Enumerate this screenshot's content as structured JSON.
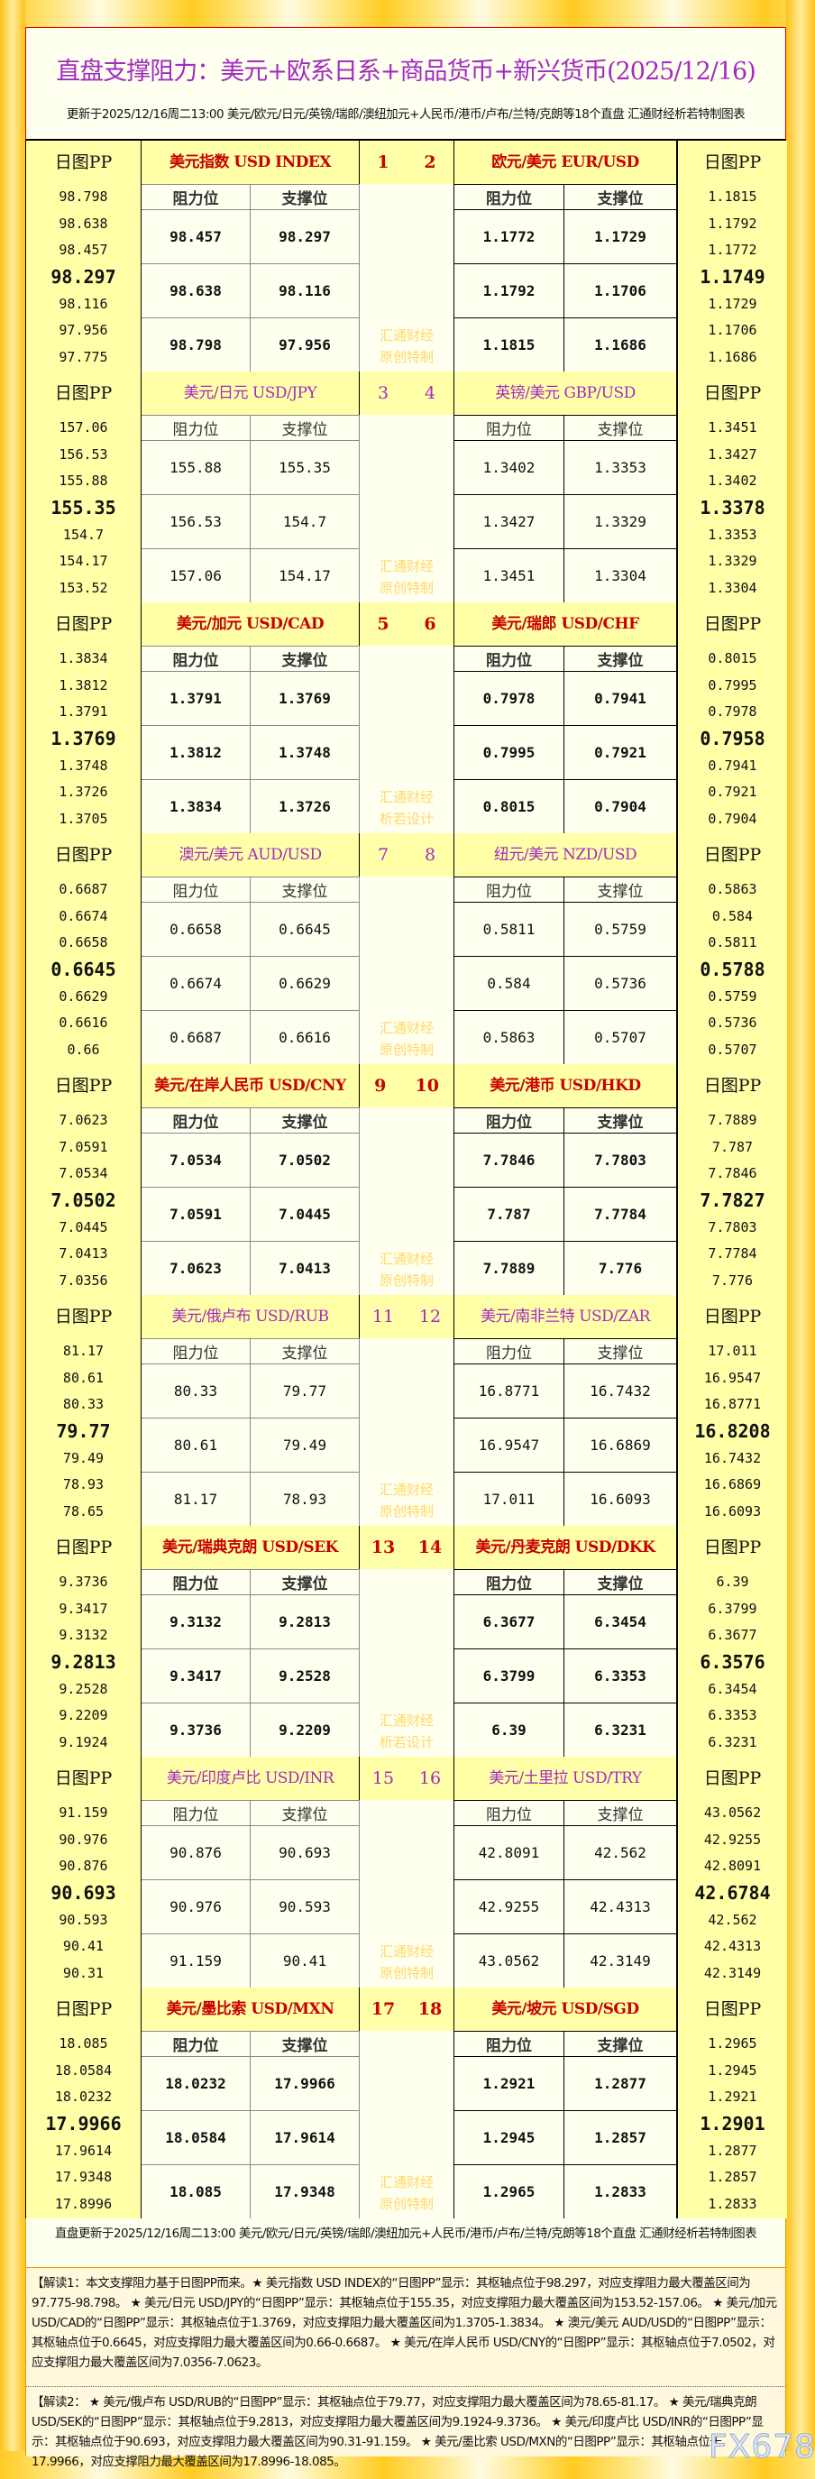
{
  "header": {
    "title": "直盘支撑阻力：美元+欧系日系+商品货币+新兴货币(2025/12/16)",
    "subtitle": "更新于2025/12/16周二13:00 美元/欧元/日元/英镑/瑞郎/澳纽加元+人民币/港币/卢布/兰特/克朗等18个直盘 汇通财经析若特制图表"
  },
  "labels": {
    "pp": "日图PP",
    "resistance": "阻力位",
    "support": "支撑位"
  },
  "colors": {
    "red_title": "#c80000",
    "purple_title": "#a02cc0",
    "watermark": "#ffd966",
    "pp_column": "#ffffa8",
    "cell": "#fffff0"
  },
  "blocks": [
    {
      "nums": [
        "1",
        "2"
      ],
      "style": "red",
      "wm": [
        "汇通财经",
        "原创特制"
      ],
      "left": {
        "name": "美元指数 USD INDEX",
        "pp": [
          "98.798",
          "98.638",
          "98.457",
          "98.297",
          "98.116",
          "97.956",
          "97.775"
        ],
        "rows": [
          [
            "98.457",
            "98.297"
          ],
          [
            "98.638",
            "98.116"
          ],
          [
            "98.798",
            "97.956"
          ]
        ]
      },
      "right": {
        "name": "欧元/美元 EUR/USD",
        "pp": [
          "1.1815",
          "1.1792",
          "1.1772",
          "1.1749",
          "1.1729",
          "1.1706",
          "1.1686"
        ],
        "rows": [
          [
            "1.1772",
            "1.1729"
          ],
          [
            "1.1792",
            "1.1706"
          ],
          [
            "1.1815",
            "1.1686"
          ]
        ]
      }
    },
    {
      "nums": [
        "3",
        "4"
      ],
      "style": "purple",
      "wm": [
        "汇通财经",
        "原创特制"
      ],
      "left": {
        "name": "美元/日元 USD/JPY",
        "pp": [
          "157.06",
          "156.53",
          "155.88",
          "155.35",
          "154.7",
          "154.17",
          "153.52"
        ],
        "rows": [
          [
            "155.88",
            "155.35"
          ],
          [
            "156.53",
            "154.7"
          ],
          [
            "157.06",
            "154.17"
          ]
        ]
      },
      "right": {
        "name": "英镑/美元 GBP/USD",
        "pp": [
          "1.3451",
          "1.3427",
          "1.3402",
          "1.3378",
          "1.3353",
          "1.3329",
          "1.3304"
        ],
        "rows": [
          [
            "1.3402",
            "1.3353"
          ],
          [
            "1.3427",
            "1.3329"
          ],
          [
            "1.3451",
            "1.3304"
          ]
        ]
      }
    },
    {
      "nums": [
        "5",
        "6"
      ],
      "style": "red",
      "wm": [
        "汇通财经",
        "析若设计"
      ],
      "left": {
        "name": "美元/加元 USD/CAD",
        "pp": [
          "1.3834",
          "1.3812",
          "1.3791",
          "1.3769",
          "1.3748",
          "1.3726",
          "1.3705"
        ],
        "rows": [
          [
            "1.3791",
            "1.3769"
          ],
          [
            "1.3812",
            "1.3748"
          ],
          [
            "1.3834",
            "1.3726"
          ]
        ]
      },
      "right": {
        "name": "美元/瑞郎 USD/CHF",
        "pp": [
          "0.8015",
          "0.7995",
          "0.7978",
          "0.7958",
          "0.7941",
          "0.7921",
          "0.7904"
        ],
        "rows": [
          [
            "0.7978",
            "0.7941"
          ],
          [
            "0.7995",
            "0.7921"
          ],
          [
            "0.8015",
            "0.7904"
          ]
        ]
      }
    },
    {
      "nums": [
        "7",
        "8"
      ],
      "style": "purple",
      "wm": [
        "汇通财经",
        "原创特制"
      ],
      "left": {
        "name": "澳元/美元 AUD/USD",
        "pp": [
          "0.6687",
          "0.6674",
          "0.6658",
          "0.6645",
          "0.6629",
          "0.6616",
          "0.66"
        ],
        "rows": [
          [
            "0.6658",
            "0.6645"
          ],
          [
            "0.6674",
            "0.6629"
          ],
          [
            "0.6687",
            "0.6616"
          ]
        ]
      },
      "right": {
        "name": "纽元/美元 NZD/USD",
        "pp": [
          "0.5863",
          "0.584",
          "0.5811",
          "0.5788",
          "0.5759",
          "0.5736",
          "0.5707"
        ],
        "rows": [
          [
            "0.5811",
            "0.5759"
          ],
          [
            "0.584",
            "0.5736"
          ],
          [
            "0.5863",
            "0.5707"
          ]
        ]
      }
    },
    {
      "nums": [
        "9",
        "10"
      ],
      "style": "red",
      "wm": [
        "汇通财经",
        "原创特制"
      ],
      "left": {
        "name": "美元/在岸人民币 USD/CNY",
        "pp": [
          "7.0623",
          "7.0591",
          "7.0534",
          "7.0502",
          "7.0445",
          "7.0413",
          "7.0356"
        ],
        "rows": [
          [
            "7.0534",
            "7.0502"
          ],
          [
            "7.0591",
            "7.0445"
          ],
          [
            "7.0623",
            "7.0413"
          ]
        ]
      },
      "right": {
        "name": "美元/港币 USD/HKD",
        "pp": [
          "7.7889",
          "7.787",
          "7.7846",
          "7.7827",
          "7.7803",
          "7.7784",
          "7.776"
        ],
        "rows": [
          [
            "7.7846",
            "7.7803"
          ],
          [
            "7.787",
            "7.7784"
          ],
          [
            "7.7889",
            "7.776"
          ]
        ]
      }
    },
    {
      "nums": [
        "11",
        "12"
      ],
      "style": "purple",
      "wm": [
        "汇通财经",
        "原创特制"
      ],
      "left": {
        "name": "美元/俄卢布 USD/RUB",
        "pp": [
          "81.17",
          "80.61",
          "80.33",
          "79.77",
          "79.49",
          "78.93",
          "78.65"
        ],
        "rows": [
          [
            "80.33",
            "79.77"
          ],
          [
            "80.61",
            "79.49"
          ],
          [
            "81.17",
            "78.93"
          ]
        ]
      },
      "right": {
        "name": "美元/南非兰特 USD/ZAR",
        "pp": [
          "17.011",
          "16.9547",
          "16.8771",
          "16.8208",
          "16.7432",
          "16.6869",
          "16.6093"
        ],
        "rows": [
          [
            "16.8771",
            "16.7432"
          ],
          [
            "16.9547",
            "16.6869"
          ],
          [
            "17.011",
            "16.6093"
          ]
        ]
      }
    },
    {
      "nums": [
        "13",
        "14"
      ],
      "style": "red",
      "wm": [
        "汇通财经",
        "析若设计"
      ],
      "left": {
        "name": "美元/瑞典克朗 USD/SEK",
        "pp": [
          "9.3736",
          "9.3417",
          "9.3132",
          "9.2813",
          "9.2528",
          "9.2209",
          "9.1924"
        ],
        "rows": [
          [
            "9.3132",
            "9.2813"
          ],
          [
            "9.3417",
            "9.2528"
          ],
          [
            "9.3736",
            "9.2209"
          ]
        ]
      },
      "right": {
        "name": "美元/丹麦克朗 USD/DKK",
        "pp": [
          "6.39",
          "6.3799",
          "6.3677",
          "6.3576",
          "6.3454",
          "6.3353",
          "6.3231"
        ],
        "rows": [
          [
            "6.3677",
            "6.3454"
          ],
          [
            "6.3799",
            "6.3353"
          ],
          [
            "6.39",
            "6.3231"
          ]
        ]
      }
    },
    {
      "nums": [
        "15",
        "16"
      ],
      "style": "purple",
      "wm": [
        "汇通财经",
        "原创特制"
      ],
      "left": {
        "name": "美元/印度卢比 USD/INR",
        "pp": [
          "91.159",
          "90.976",
          "90.876",
          "90.693",
          "90.593",
          "90.41",
          "90.31"
        ],
        "rows": [
          [
            "90.876",
            "90.693"
          ],
          [
            "90.976",
            "90.593"
          ],
          [
            "91.159",
            "90.41"
          ]
        ]
      },
      "right": {
        "name": "美元/土里拉 USD/TRY",
        "pp": [
          "43.0562",
          "42.9255",
          "42.8091",
          "42.6784",
          "42.562",
          "42.4313",
          "42.3149"
        ],
        "rows": [
          [
            "42.8091",
            "42.562"
          ],
          [
            "42.9255",
            "42.4313"
          ],
          [
            "43.0562",
            "42.3149"
          ]
        ]
      }
    },
    {
      "nums": [
        "17",
        "18"
      ],
      "style": "red",
      "wm": [
        "汇通财经",
        "原创特制"
      ],
      "left": {
        "name": "美元/墨比索 USD/MXN",
        "pp": [
          "18.085",
          "18.0584",
          "18.0232",
          "17.9966",
          "17.9614",
          "17.9348",
          "17.8996"
        ],
        "rows": [
          [
            "18.0232",
            "17.9966"
          ],
          [
            "18.0584",
            "17.9614"
          ],
          [
            "18.085",
            "17.9348"
          ]
        ]
      },
      "right": {
        "name": "美元/坡元 USD/SGD",
        "pp": [
          "1.2965",
          "1.2945",
          "1.2921",
          "1.2901",
          "1.2877",
          "1.2857",
          "1.2833"
        ],
        "rows": [
          [
            "1.2921",
            "1.2877"
          ],
          [
            "1.2945",
            "1.2857"
          ],
          [
            "1.2965",
            "1.2833"
          ]
        ]
      }
    }
  ],
  "footer": {
    "update": "直盘更新于2025/12/16周二13:00 美元/欧元/日元/英镑/瑞郎/澳纽加元+人民币/港币/卢布/兰特/克朗等18个直盘 汇通财经析若特制图表",
    "interp1": "【解读1：本文支撑阻力基于日图PP而来。★ 美元指数 USD INDEX的“日图PP”显示：其枢轴点位于98.297，对应支撑阻力最大覆盖区间为97.775-98.798。 ★ 美元/日元 USD/JPY的“日图PP”显示：其枢轴点位于155.35，对应支撑阻力最大覆盖区间为153.52-157.06。 ★ 美元/加元 USD/CAD的“日图PP”显示：其枢轴点位于1.3769，对应支撑阻力最大覆盖区间为1.3705-1.3834。 ★ 澳元/美元 AUD/USD的“日图PP”显示：其枢轴点位于0.6645，对应支撑阻力最大覆盖区间为0.66-0.6687。 ★ 美元/在岸人民币 USD/CNY的“日图PP”显示：其枢轴点位于7.0502，对应支撑阻力最大覆盖区间为7.0356-7.0623。",
    "interp2": "【解读2： ★ 美元/俄卢布 USD/RUB的“日图PP”显示：其枢轴点位于79.77，对应支撑阻力最大覆盖区间为78.65-81.17。 ★ 美元/瑞典克朗 USD/SEK的“日图PP”显示：其枢轴点位于9.2813，对应支撑阻力最大覆盖区间为9.1924-9.3736。 ★ 美元/印度卢比 USD/INR的“日图PP”显示：其枢轴点位于90.693，对应支撑阻力最大覆盖区间为90.31-91.159。 ★ 美元/墨比索 USD/MXN的“日图PP”显示：其枢轴点位于17.9966，对应支撑阻力最大覆盖区间为17.8996-18.085。"
  },
  "logo": {
    "text": "FX678"
  }
}
